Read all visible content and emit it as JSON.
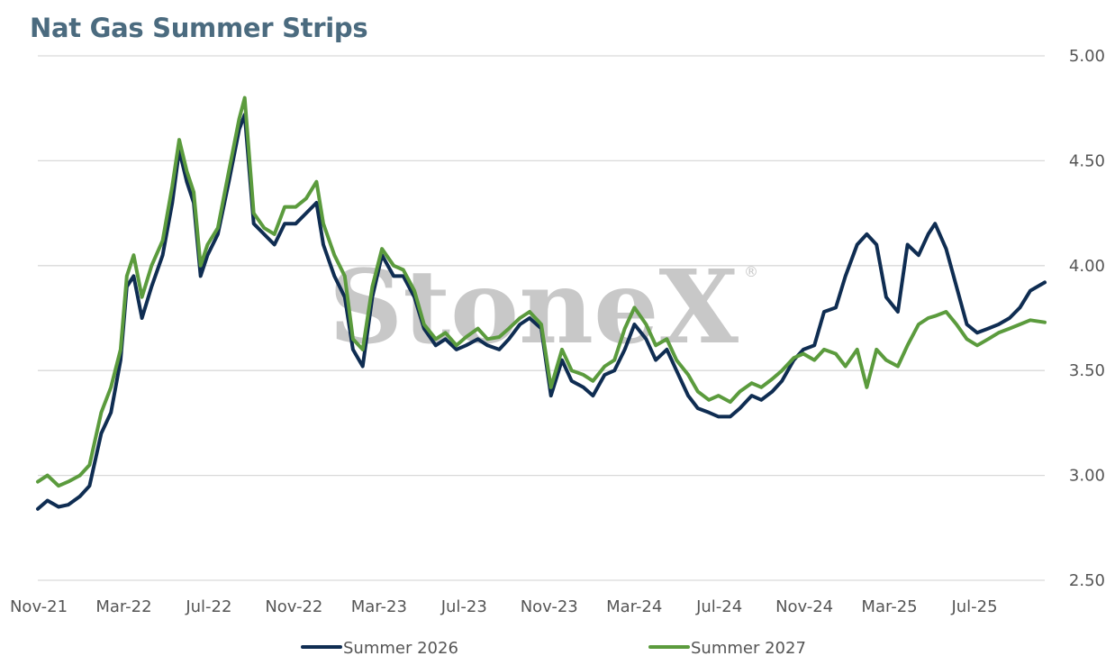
{
  "page": {
    "title": "Nat Gas Summer Strips",
    "watermark": "StoneX",
    "watermark_mark": "®"
  },
  "colors": {
    "title": "#4b6b7f",
    "grid": "#d9d9d9",
    "tick_text": "#555555",
    "watermark": "#c8c8c8",
    "summer_2026": "#0f2d52",
    "summer_2027": "#5b9b3d"
  },
  "chart_data": {
    "type": "line",
    "title": "Nat Gas Summer Strips",
    "xlabel": "",
    "ylabel": "",
    "x_tick_labels": [
      "Nov-21",
      "Mar-22",
      "Jul-22",
      "Nov-22",
      "Mar-23",
      "Jul-23",
      "Nov-23",
      "Mar-24",
      "Jul-24",
      "Nov-24",
      "Mar-25",
      "Jul-25"
    ],
    "y_tick_labels": [
      "2.50",
      "3.00",
      "3.50",
      "4.00",
      "4.50",
      "5.00"
    ],
    "ylim": [
      2.5,
      5.0
    ],
    "xlim": [
      "2021-11-01",
      "2025-10-31"
    ],
    "y_axis_side": "right",
    "grid": "horizontal",
    "legend_position": "bottom",
    "series": [
      {
        "name": "Summer 2026",
        "color": "#0f2d52",
        "points": [
          [
            "2021-11-01",
            2.84
          ],
          [
            "2021-11-15",
            2.88
          ],
          [
            "2021-12-01",
            2.85
          ],
          [
            "2021-12-15",
            2.86
          ],
          [
            "2022-01-01",
            2.9
          ],
          [
            "2022-01-15",
            2.95
          ],
          [
            "2022-02-01",
            3.2
          ],
          [
            "2022-02-15",
            3.3
          ],
          [
            "2022-03-01",
            3.55
          ],
          [
            "2022-03-10",
            3.9
          ],
          [
            "2022-03-20",
            3.95
          ],
          [
            "2022-04-01",
            3.75
          ],
          [
            "2022-04-15",
            3.9
          ],
          [
            "2022-05-01",
            4.05
          ],
          [
            "2022-05-15",
            4.3
          ],
          [
            "2022-05-25",
            4.55
          ],
          [
            "2022-06-05",
            4.4
          ],
          [
            "2022-06-15",
            4.3
          ],
          [
            "2022-06-25",
            3.95
          ],
          [
            "2022-07-05",
            4.05
          ],
          [
            "2022-07-20",
            4.15
          ],
          [
            "2022-08-05",
            4.4
          ],
          [
            "2022-08-20",
            4.65
          ],
          [
            "2022-08-28",
            4.72
          ],
          [
            "2022-09-10",
            4.2
          ],
          [
            "2022-09-25",
            4.15
          ],
          [
            "2022-10-10",
            4.1
          ],
          [
            "2022-10-25",
            4.2
          ],
          [
            "2022-11-10",
            4.2
          ],
          [
            "2022-11-25",
            4.25
          ],
          [
            "2022-12-10",
            4.3
          ],
          [
            "2022-12-20",
            4.1
          ],
          [
            "2023-01-05",
            3.95
          ],
          [
            "2023-01-20",
            3.85
          ],
          [
            "2023-02-01",
            3.6
          ],
          [
            "2023-02-15",
            3.52
          ],
          [
            "2023-03-01",
            3.85
          ],
          [
            "2023-03-15",
            4.05
          ],
          [
            "2023-04-01",
            3.95
          ],
          [
            "2023-04-15",
            3.95
          ],
          [
            "2023-05-01",
            3.85
          ],
          [
            "2023-05-15",
            3.7
          ],
          [
            "2023-06-01",
            3.62
          ],
          [
            "2023-06-15",
            3.65
          ],
          [
            "2023-07-01",
            3.6
          ],
          [
            "2023-07-15",
            3.62
          ],
          [
            "2023-08-01",
            3.65
          ],
          [
            "2023-08-15",
            3.62
          ],
          [
            "2023-09-01",
            3.6
          ],
          [
            "2023-09-15",
            3.65
          ],
          [
            "2023-10-01",
            3.72
          ],
          [
            "2023-10-15",
            3.75
          ],
          [
            "2023-11-01",
            3.7
          ],
          [
            "2023-11-15",
            3.38
          ],
          [
            "2023-12-01",
            3.55
          ],
          [
            "2023-12-15",
            3.45
          ],
          [
            "2024-01-01",
            3.42
          ],
          [
            "2024-01-15",
            3.38
          ],
          [
            "2024-02-01",
            3.48
          ],
          [
            "2024-02-15",
            3.5
          ],
          [
            "2024-03-01",
            3.6
          ],
          [
            "2024-03-15",
            3.72
          ],
          [
            "2024-04-01",
            3.65
          ],
          [
            "2024-04-15",
            3.55
          ],
          [
            "2024-05-01",
            3.6
          ],
          [
            "2024-05-15",
            3.5
          ],
          [
            "2024-06-01",
            3.38
          ],
          [
            "2024-06-15",
            3.32
          ],
          [
            "2024-07-01",
            3.3
          ],
          [
            "2024-07-15",
            3.28
          ],
          [
            "2024-08-01",
            3.28
          ],
          [
            "2024-08-15",
            3.32
          ],
          [
            "2024-09-01",
            3.38
          ],
          [
            "2024-09-15",
            3.36
          ],
          [
            "2024-10-01",
            3.4
          ],
          [
            "2024-10-15",
            3.45
          ],
          [
            "2024-11-01",
            3.55
          ],
          [
            "2024-11-15",
            3.6
          ],
          [
            "2024-12-01",
            3.62
          ],
          [
            "2024-12-15",
            3.78
          ],
          [
            "2025-01-01",
            3.8
          ],
          [
            "2025-01-15",
            3.95
          ],
          [
            "2025-02-01",
            4.1
          ],
          [
            "2025-02-15",
            4.15
          ],
          [
            "2025-03-01",
            4.1
          ],
          [
            "2025-03-15",
            3.85
          ],
          [
            "2025-04-01",
            3.78
          ],
          [
            "2025-04-15",
            4.1
          ],
          [
            "2025-05-01",
            4.05
          ],
          [
            "2025-05-15",
            4.15
          ],
          [
            "2025-05-25",
            4.2
          ],
          [
            "2025-06-10",
            4.08
          ],
          [
            "2025-06-25",
            3.9
          ],
          [
            "2025-07-10",
            3.72
          ],
          [
            "2025-07-25",
            3.68
          ],
          [
            "2025-08-10",
            3.7
          ],
          [
            "2025-08-25",
            3.72
          ],
          [
            "2025-09-10",
            3.75
          ],
          [
            "2025-09-25",
            3.8
          ],
          [
            "2025-10-10",
            3.88
          ],
          [
            "2025-10-31",
            3.92
          ]
        ]
      },
      {
        "name": "Summer 2027",
        "color": "#5b9b3d",
        "points": [
          [
            "2021-11-01",
            2.97
          ],
          [
            "2021-11-15",
            3.0
          ],
          [
            "2021-12-01",
            2.95
          ],
          [
            "2021-12-15",
            2.97
          ],
          [
            "2022-01-01",
            3.0
          ],
          [
            "2022-01-15",
            3.05
          ],
          [
            "2022-02-01",
            3.3
          ],
          [
            "2022-02-15",
            3.42
          ],
          [
            "2022-03-01",
            3.6
          ],
          [
            "2022-03-10",
            3.95
          ],
          [
            "2022-03-20",
            4.05
          ],
          [
            "2022-04-01",
            3.85
          ],
          [
            "2022-04-15",
            4.0
          ],
          [
            "2022-05-01",
            4.12
          ],
          [
            "2022-05-15",
            4.38
          ],
          [
            "2022-05-25",
            4.6
          ],
          [
            "2022-06-05",
            4.45
          ],
          [
            "2022-06-15",
            4.35
          ],
          [
            "2022-06-25",
            4.0
          ],
          [
            "2022-07-05",
            4.1
          ],
          [
            "2022-07-20",
            4.18
          ],
          [
            "2022-08-05",
            4.45
          ],
          [
            "2022-08-20",
            4.7
          ],
          [
            "2022-08-28",
            4.8
          ],
          [
            "2022-09-10",
            4.25
          ],
          [
            "2022-09-25",
            4.18
          ],
          [
            "2022-10-10",
            4.15
          ],
          [
            "2022-10-25",
            4.28
          ],
          [
            "2022-11-10",
            4.28
          ],
          [
            "2022-11-25",
            4.32
          ],
          [
            "2022-12-10",
            4.4
          ],
          [
            "2022-12-20",
            4.2
          ],
          [
            "2023-01-05",
            4.05
          ],
          [
            "2023-01-20",
            3.95
          ],
          [
            "2023-02-01",
            3.65
          ],
          [
            "2023-02-15",
            3.6
          ],
          [
            "2023-03-01",
            3.9
          ],
          [
            "2023-03-15",
            4.08
          ],
          [
            "2023-04-01",
            4.0
          ],
          [
            "2023-04-15",
            3.98
          ],
          [
            "2023-05-01",
            3.88
          ],
          [
            "2023-05-15",
            3.72
          ],
          [
            "2023-06-01",
            3.65
          ],
          [
            "2023-06-15",
            3.68
          ],
          [
            "2023-07-01",
            3.62
          ],
          [
            "2023-07-15",
            3.66
          ],
          [
            "2023-08-01",
            3.7
          ],
          [
            "2023-08-15",
            3.65
          ],
          [
            "2023-09-01",
            3.66
          ],
          [
            "2023-09-15",
            3.7
          ],
          [
            "2023-10-01",
            3.75
          ],
          [
            "2023-10-15",
            3.78
          ],
          [
            "2023-11-01",
            3.72
          ],
          [
            "2023-11-15",
            3.42
          ],
          [
            "2023-12-01",
            3.6
          ],
          [
            "2023-12-15",
            3.5
          ],
          [
            "2024-01-01",
            3.48
          ],
          [
            "2024-01-15",
            3.45
          ],
          [
            "2024-02-01",
            3.52
          ],
          [
            "2024-02-15",
            3.55
          ],
          [
            "2024-03-01",
            3.7
          ],
          [
            "2024-03-15",
            3.8
          ],
          [
            "2024-04-01",
            3.72
          ],
          [
            "2024-04-15",
            3.62
          ],
          [
            "2024-05-01",
            3.65
          ],
          [
            "2024-05-15",
            3.55
          ],
          [
            "2024-06-01",
            3.48
          ],
          [
            "2024-06-15",
            3.4
          ],
          [
            "2024-07-01",
            3.36
          ],
          [
            "2024-07-15",
            3.38
          ],
          [
            "2024-08-01",
            3.35
          ],
          [
            "2024-08-15",
            3.4
          ],
          [
            "2024-09-01",
            3.44
          ],
          [
            "2024-09-15",
            3.42
          ],
          [
            "2024-10-01",
            3.46
          ],
          [
            "2024-10-15",
            3.5
          ],
          [
            "2024-11-01",
            3.56
          ],
          [
            "2024-11-15",
            3.58
          ],
          [
            "2024-12-01",
            3.55
          ],
          [
            "2024-12-15",
            3.6
          ],
          [
            "2025-01-01",
            3.58
          ],
          [
            "2025-01-15",
            3.52
          ],
          [
            "2025-02-01",
            3.6
          ],
          [
            "2025-02-15",
            3.42
          ],
          [
            "2025-03-01",
            3.6
          ],
          [
            "2025-03-15",
            3.55
          ],
          [
            "2025-04-01",
            3.52
          ],
          [
            "2025-04-15",
            3.62
          ],
          [
            "2025-05-01",
            3.72
          ],
          [
            "2025-05-15",
            3.75
          ],
          [
            "2025-05-25",
            3.76
          ],
          [
            "2025-06-10",
            3.78
          ],
          [
            "2025-06-25",
            3.72
          ],
          [
            "2025-07-10",
            3.65
          ],
          [
            "2025-07-25",
            3.62
          ],
          [
            "2025-08-10",
            3.65
          ],
          [
            "2025-08-25",
            3.68
          ],
          [
            "2025-09-10",
            3.7
          ],
          [
            "2025-09-25",
            3.72
          ],
          [
            "2025-10-10",
            3.74
          ],
          [
            "2025-10-31",
            3.73
          ]
        ]
      }
    ]
  }
}
